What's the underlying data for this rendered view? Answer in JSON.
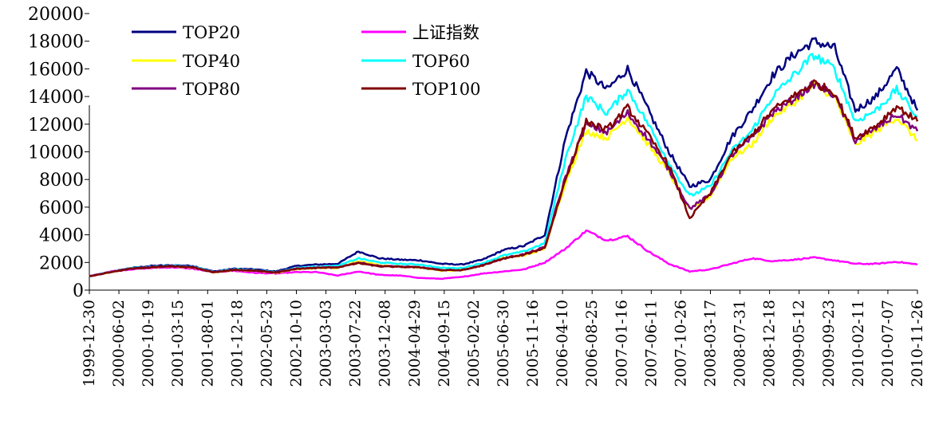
{
  "chart_data": {
    "type": "line",
    "title": "",
    "xlabel": "",
    "ylabel": "",
    "ylim": [
      0,
      20000
    ],
    "yticks": [
      "0",
      "2000",
      "4000",
      "6000",
      "8000",
      "10000",
      "12000",
      "14000",
      "16000",
      "18000",
      "20000"
    ],
    "x_tick_labels": [
      "1999-12-30",
      "2000-06-02",
      "2000-10-19",
      "2001-03-15",
      "2001-08-01",
      "2001-12-18",
      "2002-05-23",
      "2002-10-10",
      "2003-03-03",
      "2003-07-22",
      "2003-12-08",
      "2004-04-29",
      "2004-09-15",
      "2005-02-02",
      "2005-06-30",
      "2005-11-16",
      "2006-04-10",
      "2006-08-25",
      "2007-01-16",
      "2007-06-11",
      "2007-10-26",
      "2008-03-17",
      "2008-07-31",
      "2008-12-18",
      "2009-05-12",
      "2009-09-23",
      "2010-02-11",
      "2010-07-07",
      "2010-11-26"
    ],
    "legend_position": "top-left",
    "series": [
      {
        "name": "TOP20",
        "color": "#000080",
        "values": [
          1000,
          1300,
          1600,
          1750,
          1800,
          1750,
          1350,
          1550,
          1500,
          1350,
          1750,
          1850,
          1900,
          2800,
          2300,
          2200,
          2150,
          1900,
          1850,
          2200,
          2900,
          3200,
          4000,
          11000,
          15800,
          14500,
          16000,
          13000,
          10000,
          7500,
          8000,
          11000,
          13000,
          15500,
          17000,
          18000,
          17500,
          13000,
          14000,
          16000,
          13000
        ]
      },
      {
        "name": "上证指数",
        "color": "#FF00FF",
        "values": [
          1000,
          1350,
          1500,
          1600,
          1650,
          1550,
          1300,
          1400,
          1250,
          1200,
          1300,
          1300,
          1050,
          1350,
          1100,
          1050,
          880,
          820,
          950,
          1200,
          1350,
          1500,
          2000,
          3000,
          4300,
          3600,
          3900,
          2800,
          1900,
          1350,
          1500,
          1900,
          2300,
          2100,
          2200,
          2350,
          2150,
          1900,
          1900,
          2050,
          1850
        ]
      },
      {
        "name": "TOP40",
        "color": "#FFFF00",
        "values": [
          1000,
          1300,
          1550,
          1650,
          1700,
          1650,
          1280,
          1450,
          1400,
          1250,
          1500,
          1600,
          1600,
          2100,
          1800,
          1700,
          1650,
          1400,
          1450,
          1800,
          2350,
          2500,
          3000,
          7800,
          11500,
          11000,
          12500,
          10500,
          8500,
          5800,
          6800,
          9500,
          10500,
          12500,
          13500,
          14800,
          14000,
          10500,
          11500,
          12500,
          10800
        ]
      },
      {
        "name": "TOP60",
        "color": "#00FFFF",
        "values": [
          1000,
          1300,
          1580,
          1700,
          1750,
          1700,
          1320,
          1500,
          1450,
          1300,
          1600,
          1700,
          1750,
          2300,
          2000,
          1900,
          1850,
          1600,
          1600,
          1950,
          2500,
          2800,
          3400,
          9500,
          14000,
          12800,
          14500,
          12000,
          9200,
          6800,
          7500,
          10000,
          11500,
          14000,
          15500,
          17000,
          16000,
          12200,
          13000,
          14500,
          12500
        ]
      },
      {
        "name": "TOP80",
        "color": "#800080",
        "values": [
          1000,
          1300,
          1560,
          1660,
          1720,
          1660,
          1300,
          1470,
          1420,
          1270,
          1550,
          1620,
          1650,
          2000,
          1750,
          1700,
          1650,
          1450,
          1450,
          1800,
          2300,
          2600,
          3100,
          8200,
          12000,
          11400,
          12800,
          10900,
          8700,
          5900,
          6900,
          9700,
          11000,
          12800,
          13800,
          14900,
          14100,
          10800,
          11700,
          12700,
          11500
        ]
      },
      {
        "name": "TOP100",
        "color": "#800000",
        "values": [
          1000,
          1290,
          1540,
          1650,
          1710,
          1640,
          1290,
          1460,
          1420,
          1260,
          1540,
          1600,
          1650,
          1950,
          1720,
          1680,
          1640,
          1440,
          1440,
          1780,
          2280,
          2550,
          3050,
          8000,
          12200,
          11600,
          13200,
          11200,
          9000,
          5200,
          7000,
          9800,
          11200,
          13000,
          14000,
          15000,
          14300,
          11000,
          11900,
          13300,
          12200
        ]
      }
    ]
  }
}
